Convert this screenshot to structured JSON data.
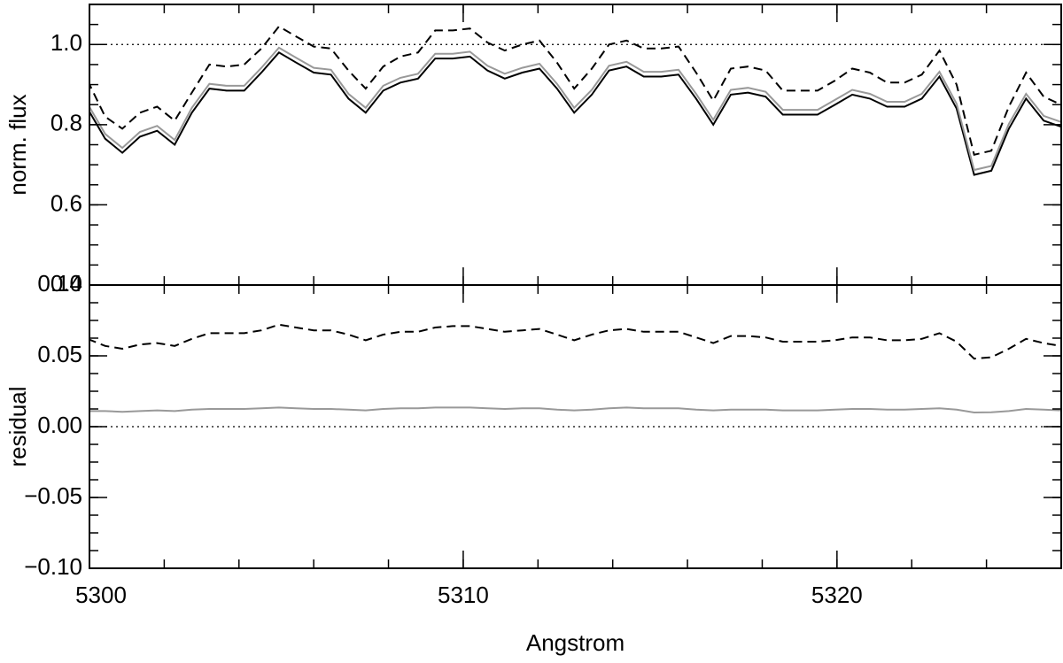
{
  "chart_data": [
    {
      "type": "line",
      "ylabel": "norm. flux",
      "x": [
        5299.95,
        5300.42,
        5300.88,
        5301.35,
        5301.81,
        5302.28,
        5302.74,
        5303.21,
        5303.67,
        5304.14,
        5304.6,
        5305.07,
        5305.53,
        5306.0,
        5306.46,
        5306.93,
        5307.39,
        5307.86,
        5308.32,
        5308.79,
        5309.25,
        5309.72,
        5310.18,
        5310.65,
        5311.11,
        5311.58,
        5312.04,
        5312.51,
        5312.97,
        5313.44,
        5313.9,
        5314.37,
        5314.83,
        5315.3,
        5315.76,
        5316.23,
        5316.69,
        5317.16,
        5317.62,
        5318.09,
        5318.55,
        5319.02,
        5319.48,
        5319.95,
        5320.41,
        5320.88,
        5321.34,
        5321.81,
        5322.27,
        5322.74,
        5323.2,
        5323.67,
        5324.13,
        5324.6,
        5325.06,
        5325.53,
        5325.99
      ],
      "series": [
        {
          "color": "#000000",
          "style": "solid",
          "values": [
            0.84,
            0.765,
            0.73,
            0.77,
            0.785,
            0.75,
            0.83,
            0.89,
            0.885,
            0.885,
            0.93,
            0.98,
            0.955,
            0.93,
            0.925,
            0.865,
            0.83,
            0.885,
            0.905,
            0.915,
            0.965,
            0.965,
            0.97,
            0.935,
            0.915,
            0.93,
            0.94,
            0.89,
            0.83,
            0.875,
            0.935,
            0.945,
            0.92,
            0.92,
            0.925,
            0.865,
            0.8,
            0.875,
            0.88,
            0.87,
            0.825,
            0.825,
            0.825,
            0.85,
            0.875,
            0.865,
            0.845,
            0.845,
            0.865,
            0.92,
            0.84,
            0.675,
            0.685,
            0.79,
            0.865,
            0.81,
            0.795
          ]
        },
        {
          "color": "#999999",
          "style": "solid",
          "values": [
            0.852,
            0.777,
            0.742,
            0.782,
            0.797,
            0.762,
            0.842,
            0.902,
            0.897,
            0.897,
            0.942,
            0.992,
            0.967,
            0.942,
            0.937,
            0.877,
            0.842,
            0.897,
            0.917,
            0.927,
            0.977,
            0.977,
            0.982,
            0.947,
            0.927,
            0.942,
            0.952,
            0.902,
            0.842,
            0.887,
            0.947,
            0.957,
            0.932,
            0.932,
            0.937,
            0.877,
            0.812,
            0.887,
            0.892,
            0.882,
            0.837,
            0.837,
            0.837,
            0.862,
            0.887,
            0.877,
            0.857,
            0.857,
            0.877,
            0.932,
            0.852,
            0.687,
            0.697,
            0.802,
            0.877,
            0.822,
            0.807
          ]
        },
        {
          "color": "#000000",
          "style": "dashed",
          "values": [
            0.91,
            0.82,
            0.79,
            0.83,
            0.845,
            0.81,
            0.88,
            0.95,
            0.945,
            0.95,
            0.99,
            1.045,
            1.02,
            0.995,
            0.99,
            0.935,
            0.89,
            0.945,
            0.97,
            0.98,
            1.035,
            1.035,
            1.04,
            1.005,
            0.985,
            1.0,
            1.01,
            0.955,
            0.89,
            0.94,
            1.0,
            1.01,
            0.99,
            0.99,
            0.995,
            0.93,
            0.86,
            0.94,
            0.945,
            0.935,
            0.885,
            0.885,
            0.885,
            0.91,
            0.94,
            0.93,
            0.905,
            0.905,
            0.925,
            0.985,
            0.9,
            0.725,
            0.735,
            0.845,
            0.93,
            0.87,
            0.85
          ]
        }
      ],
      "xlim": [
        5300,
        5326
      ],
      "xticks": [
        5300,
        5310,
        5320
      ],
      "ylim": [
        0.4,
        1.1
      ],
      "yticks": [
        0.4,
        0.6,
        0.8,
        {
          "value": 1,
          "label": "1.0"
        }
      ],
      "reference_line": 1
    },
    {
      "type": "line",
      "ylabel": "residual",
      "xlabel": "Angstrom",
      "x": [
        5299.95,
        5300.42,
        5300.88,
        5301.35,
        5301.81,
        5302.28,
        5302.74,
        5303.21,
        5303.67,
        5304.14,
        5304.6,
        5305.07,
        5305.53,
        5306.0,
        5306.46,
        5306.93,
        5307.39,
        5307.86,
        5308.32,
        5308.79,
        5309.25,
        5309.72,
        5310.18,
        5310.65,
        5311.11,
        5311.58,
        5312.04,
        5312.51,
        5312.97,
        5313.44,
        5313.9,
        5314.37,
        5314.83,
        5315.3,
        5315.76,
        5316.23,
        5316.69,
        5317.16,
        5317.62,
        5318.09,
        5318.55,
        5319.02,
        5319.48,
        5319.95,
        5320.41,
        5320.88,
        5321.34,
        5321.81,
        5322.27,
        5322.74,
        5323.2,
        5323.67,
        5324.13,
        5324.6,
        5325.06,
        5325.53,
        5325.99
      ],
      "series": [
        {
          "color": "#999999",
          "style": "solid",
          "values": [
            0.011,
            0.011,
            0.0105,
            0.011,
            0.0115,
            0.011,
            0.012,
            0.0125,
            0.0125,
            0.0125,
            0.013,
            0.0135,
            0.013,
            0.0125,
            0.0125,
            0.012,
            0.0115,
            0.0125,
            0.013,
            0.013,
            0.0135,
            0.0135,
            0.0135,
            0.013,
            0.0125,
            0.013,
            0.013,
            0.012,
            0.0115,
            0.012,
            0.013,
            0.0135,
            0.013,
            0.013,
            0.013,
            0.012,
            0.0115,
            0.012,
            0.012,
            0.012,
            0.0115,
            0.0115,
            0.0115,
            0.012,
            0.0125,
            0.0125,
            0.012,
            0.012,
            0.0125,
            0.013,
            0.012,
            0.01,
            0.0102,
            0.011,
            0.0125,
            0.012,
            0.0115
          ]
        },
        {
          "color": "#000000",
          "style": "dashed",
          "values": [
            0.062,
            0.057,
            0.055,
            0.058,
            0.059,
            0.057,
            0.062,
            0.066,
            0.066,
            0.066,
            0.068,
            0.072,
            0.07,
            0.068,
            0.068,
            0.065,
            0.061,
            0.065,
            0.067,
            0.067,
            0.07,
            0.071,
            0.071,
            0.069,
            0.067,
            0.068,
            0.069,
            0.065,
            0.061,
            0.065,
            0.068,
            0.069,
            0.067,
            0.067,
            0.067,
            0.063,
            0.059,
            0.064,
            0.064,
            0.063,
            0.06,
            0.06,
            0.06,
            0.061,
            0.063,
            0.063,
            0.061,
            0.061,
            0.062,
            0.066,
            0.06,
            0.048,
            0.049,
            0.055,
            0.062,
            0.059,
            0.057
          ]
        }
      ],
      "xlim": [
        5300,
        5326
      ],
      "xticks": [
        5300,
        5310,
        5320
      ],
      "xtick_labels": true,
      "ylim": [
        -0.1,
        0.1
      ],
      "yticks": [
        {
          "value": -0.1,
          "label": "−0.10"
        },
        {
          "value": -0.05,
          "label": "−0.05"
        },
        {
          "value": 0,
          "label": "0.00"
        },
        {
          "value": 0.05,
          "label": "0.05"
        },
        {
          "value": 0.1,
          "label": "0.10"
        }
      ],
      "reference_line": 0
    }
  ]
}
